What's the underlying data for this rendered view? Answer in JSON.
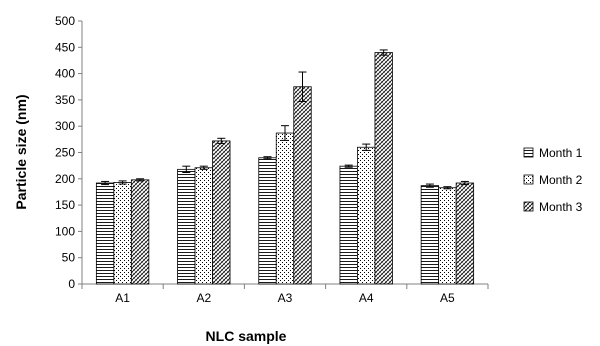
{
  "chart_data": {
    "type": "bar",
    "categories": [
      "A1",
      "A2",
      "A3",
      "A4",
      "A5"
    ],
    "series": [
      {
        "name": "Month 1",
        "values": [
          192,
          218,
          240,
          224,
          187
        ],
        "errors": [
          3,
          6,
          2,
          2,
          3
        ]
      },
      {
        "name": "Month 2",
        "values": [
          193,
          221,
          287,
          260,
          183
        ],
        "errors": [
          3,
          3,
          14,
          6,
          2
        ]
      },
      {
        "name": "Month 3",
        "values": [
          198,
          272,
          375,
          440,
          192
        ],
        "errors": [
          2,
          5,
          28,
          5,
          3
        ]
      }
    ],
    "title": "",
    "xlabel": "NLC sample",
    "ylabel": "Particle size (nm)",
    "ylim": [
      0,
      500
    ],
    "yticks": [
      0,
      50,
      100,
      150,
      200,
      250,
      300,
      350,
      400,
      450,
      500
    ],
    "grid": false,
    "legend": "right",
    "colors": {
      "bar_stroke": "#000000",
      "axis": "#808080",
      "pattern": "#000000"
    }
  }
}
